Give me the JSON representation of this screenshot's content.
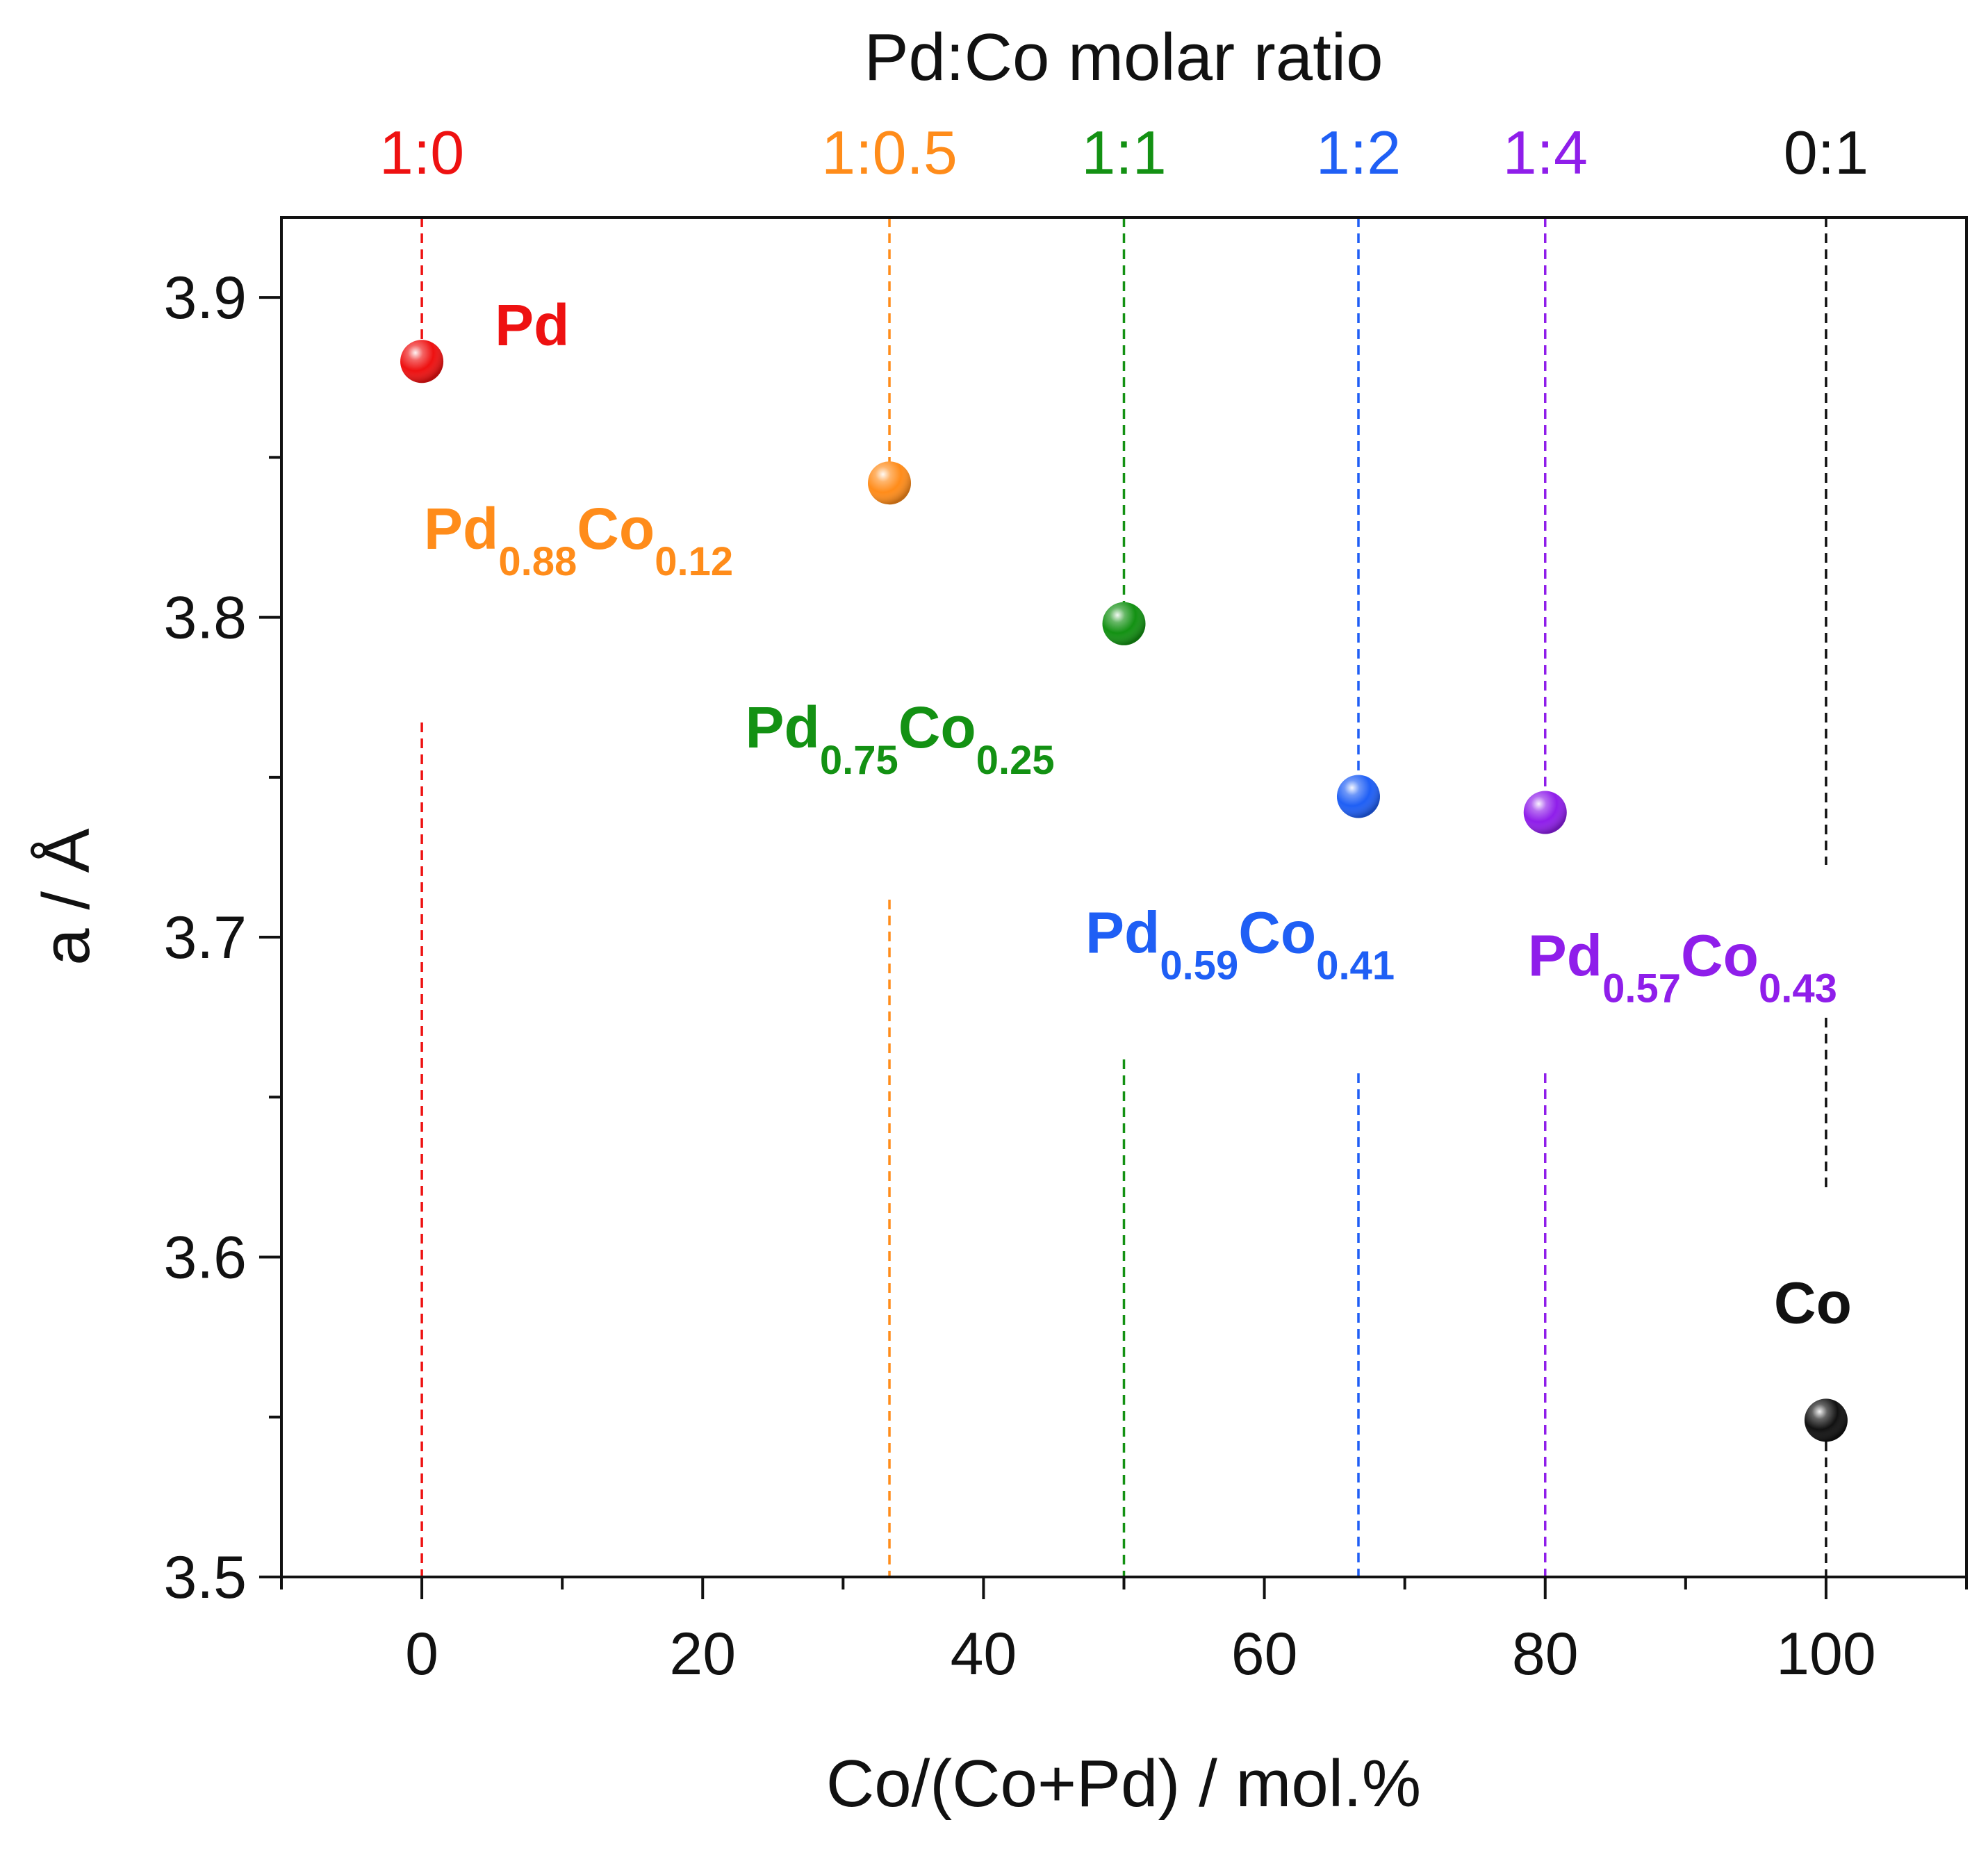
{
  "chart_data": {
    "type": "scatter",
    "title": "",
    "xlabel": "Co/(Co+Pd) / mol.%",
    "ylabel": "a / Å",
    "top_axis_label": "Pd:Co molar ratio",
    "xlim": [
      -10,
      110
    ],
    "ylim": [
      3.5,
      3.925
    ],
    "x_ticks": [
      0,
      20,
      40,
      60,
      80,
      100
    ],
    "x_tick_labels": [
      "0",
      "20",
      "40",
      "60",
      "80",
      "100"
    ],
    "y_ticks": [
      3.5,
      3.6,
      3.7,
      3.8,
      3.9
    ],
    "y_tick_labels": [
      "3.5",
      "3.6",
      "3.7",
      "3.8",
      "3.9"
    ],
    "grid": false,
    "series": [
      {
        "name": "Pd",
        "ratio": "1:0",
        "x": 0,
        "y": 3.88,
        "color": "#ee1111",
        "label": {
          "main1": "Pd",
          "sub1": "",
          "main2": "",
          "sub2": ""
        }
      },
      {
        "name": "Pd0.88Co0.12",
        "ratio": "1:0.5",
        "x": 33.3,
        "y": 3.842,
        "color": "#ff8c1a",
        "label": {
          "main1": "Pd",
          "sub1": "0.88",
          "main2": "Co",
          "sub2": "0.12"
        }
      },
      {
        "name": "Pd0.75Co0.25",
        "ratio": "1:1",
        "x": 50,
        "y": 3.798,
        "color": "#139113",
        "label": {
          "main1": "Pd",
          "sub1": "0.75",
          "main2": "Co",
          "sub2": "0.25"
        }
      },
      {
        "name": "Pd0.59Co0.41",
        "ratio": "1:2",
        "x": 66.7,
        "y": 3.744,
        "color": "#1f5ff5",
        "label": {
          "main1": "Pd",
          "sub1": "0.59",
          "main2": "Co",
          "sub2": "0.41"
        }
      },
      {
        "name": "Pd0.57Co0.43",
        "ratio": "1:4",
        "x": 80,
        "y": 3.739,
        "color": "#8f1eea",
        "label": {
          "main1": "Pd",
          "sub1": "0.57",
          "main2": "Co",
          "sub2": "0.43"
        }
      },
      {
        "name": "Co",
        "ratio": "0:1",
        "x": 100,
        "y": 3.549,
        "color": "#111111",
        "label": {
          "main1": "Co",
          "sub1": "",
          "main2": "",
          "sub2": ""
        }
      }
    ]
  }
}
